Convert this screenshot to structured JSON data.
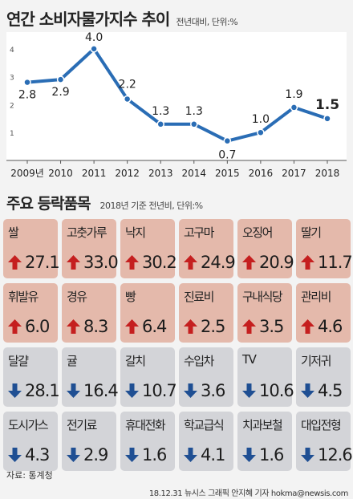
{
  "header": {
    "title": "연간 소비자물가지수 추이",
    "subtitle": "전년대비, 단위:%"
  },
  "chart_data": {
    "type": "line",
    "categories": [
      "2009년",
      "2010",
      "2011",
      "2012",
      "2013",
      "2014",
      "2015",
      "2016",
      "2017",
      "2018"
    ],
    "values": [
      2.8,
      2.9,
      4.0,
      2.2,
      1.3,
      1.3,
      0.7,
      1.0,
      1.9,
      1.5
    ],
    "value_labels": [
      "2.8",
      "2.9",
      "4.0",
      "2.2",
      "1.3",
      "1.3",
      "0.7",
      "1.0",
      "1.9",
      "1.5"
    ],
    "yticks": [
      "4",
      "3",
      "2",
      "1"
    ],
    "ylim": [
      0,
      4.6
    ],
    "line_color": "#2a6db5",
    "grid": false
  },
  "items_section": {
    "title": "주요 등락품목",
    "subtitle": "2018년 기준 전년비, 단위:%"
  },
  "items": [
    {
      "name": "쌀",
      "value": "27.1",
      "direction": "up",
      "icon": "up-arrow-icon"
    },
    {
      "name": "고춧가루",
      "value": "33.0",
      "direction": "up",
      "icon": "up-arrow-icon"
    },
    {
      "name": "낙지",
      "value": "30.2",
      "direction": "up",
      "icon": "up-arrow-icon"
    },
    {
      "name": "고구마",
      "value": "24.9",
      "direction": "up",
      "icon": "up-arrow-icon"
    },
    {
      "name": "오징어",
      "value": "20.9",
      "direction": "up",
      "icon": "up-arrow-icon"
    },
    {
      "name": "딸기",
      "value": "11.7",
      "direction": "up",
      "icon": "up-arrow-icon"
    },
    {
      "name": "휘발유",
      "value": "6.0",
      "direction": "up",
      "icon": "up-arrow-icon"
    },
    {
      "name": "경유",
      "value": "8.3",
      "direction": "up",
      "icon": "up-arrow-icon"
    },
    {
      "name": "빵",
      "value": "6.4",
      "direction": "up",
      "icon": "up-arrow-icon"
    },
    {
      "name": "진료비",
      "value": "2.5",
      "direction": "up",
      "icon": "up-arrow-icon"
    },
    {
      "name": "구내식당",
      "value": "3.5",
      "direction": "up",
      "icon": "up-arrow-icon"
    },
    {
      "name": "관리비",
      "value": "4.6",
      "direction": "up",
      "icon": "up-arrow-icon"
    },
    {
      "name": "달걀",
      "value": "28.1",
      "direction": "down",
      "icon": "down-arrow-icon"
    },
    {
      "name": "귤",
      "value": "16.4",
      "direction": "down",
      "icon": "down-arrow-icon"
    },
    {
      "name": "갈치",
      "value": "10.7",
      "direction": "down",
      "icon": "down-arrow-icon"
    },
    {
      "name": "수입차",
      "value": "3.6",
      "direction": "down",
      "icon": "down-arrow-icon"
    },
    {
      "name": "TV",
      "value": "10.6",
      "direction": "down",
      "icon": "down-arrow-icon"
    },
    {
      "name": "기저귀",
      "value": "4.5",
      "direction": "down",
      "icon": "down-arrow-icon"
    },
    {
      "name": "도시가스",
      "value": "4.3",
      "direction": "down",
      "icon": "down-arrow-icon"
    },
    {
      "name": "전기료",
      "value": "2.9",
      "direction": "down",
      "icon": "down-arrow-icon"
    },
    {
      "name": "휴대전화",
      "value": "1.6",
      "direction": "down",
      "icon": "down-arrow-icon"
    },
    {
      "name": "학교급식",
      "value": "4.1",
      "direction": "down",
      "icon": "down-arrow-icon"
    },
    {
      "name": "치과보철",
      "value": "1.6",
      "direction": "down",
      "icon": "down-arrow-icon"
    },
    {
      "name": "대입전형",
      "value": "12.6",
      "direction": "down",
      "icon": "down-arrow-icon"
    }
  ],
  "colors": {
    "up_card": "#e4b9ab",
    "down_card": "#d3d4d8",
    "up_arrow": "#c51f1f",
    "down_arrow": "#1f4f93"
  },
  "footer": {
    "source": "자료: 통계청",
    "credit": "18.12.31 뉴시스 그래픽 안지혜 기자 hokma@newsis.com"
  }
}
